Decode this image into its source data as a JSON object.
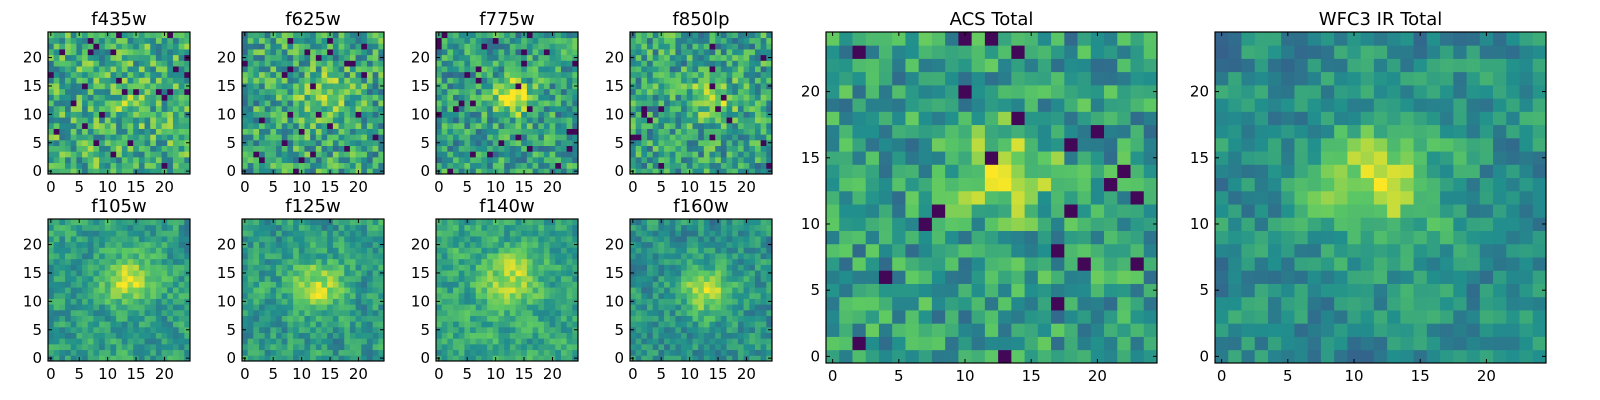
{
  "figure": {
    "colormap": "viridis",
    "colormap_stops": [
      "#440154",
      "#3b528b",
      "#21908d",
      "#5dc963",
      "#fde725"
    ]
  },
  "chart_data": [
    {
      "type": "heatmap",
      "title": "f435w",
      "size": 25,
      "xticks": [
        0,
        5,
        10,
        15,
        20
      ],
      "yticks": [
        0,
        5,
        10,
        15,
        20
      ],
      "xlim": [
        -0.5,
        24.5
      ],
      "ylim": [
        -0.5,
        24.5
      ],
      "seed": 11,
      "signal": 0.1,
      "center": [
        14,
        13
      ],
      "sigma": 3,
      "smooth": 0,
      "bias": 0.62,
      "noise": 0.26,
      "grid": false,
      "legend": "none"
    },
    {
      "type": "heatmap",
      "title": "f625w",
      "size": 25,
      "xticks": [
        0,
        5,
        10,
        15,
        20
      ],
      "yticks": [
        0,
        5,
        10,
        15,
        20
      ],
      "xlim": [
        -0.5,
        24.5
      ],
      "ylim": [
        -0.5,
        24.5
      ],
      "seed": 23,
      "signal": 0.22,
      "center": [
        14,
        13
      ],
      "sigma": 3,
      "smooth": 0,
      "bias": 0.58,
      "noise": 0.26,
      "grid": false,
      "legend": "none"
    },
    {
      "type": "heatmap",
      "title": "f775w",
      "size": 25,
      "xticks": [
        0,
        5,
        10,
        15,
        20
      ],
      "yticks": [
        0,
        5,
        10,
        15,
        20
      ],
      "xlim": [
        -0.5,
        24.5
      ],
      "ylim": [
        -0.5,
        24.5
      ],
      "seed": 37,
      "signal": 0.38,
      "center": [
        13,
        13
      ],
      "sigma": 2.5,
      "smooth": 0,
      "bias": 0.55,
      "noise": 0.24,
      "grid": false,
      "legend": "none"
    },
    {
      "type": "heatmap",
      "title": "f850lp",
      "size": 25,
      "xticks": [
        0,
        5,
        10,
        15,
        20
      ],
      "yticks": [
        0,
        5,
        10,
        15,
        20
      ],
      "xlim": [
        -0.5,
        24.5
      ],
      "ylim": [
        -0.5,
        24.5
      ],
      "seed": 41,
      "signal": 0.3,
      "center": [
        14,
        13
      ],
      "sigma": 2.5,
      "smooth": 0,
      "bias": 0.57,
      "noise": 0.25,
      "grid": false,
      "legend": "none"
    },
    {
      "type": "heatmap",
      "title": "f105w",
      "size": 25,
      "xticks": [
        0,
        5,
        10,
        15,
        20
      ],
      "yticks": [
        0,
        5,
        10,
        15,
        20
      ],
      "xlim": [
        -0.5,
        24.5
      ],
      "ylim": [
        -0.5,
        24.5
      ],
      "seed": 53,
      "signal": 0.38,
      "center": [
        14,
        14
      ],
      "sigma": 3,
      "smooth": 1,
      "bias": 0.56,
      "noise": 0.22,
      "grid": false,
      "legend": "none"
    },
    {
      "type": "heatmap",
      "title": "f125w",
      "size": 25,
      "xticks": [
        0,
        5,
        10,
        15,
        20
      ],
      "yticks": [
        0,
        5,
        10,
        15,
        20
      ],
      "xlim": [
        -0.5,
        24.5
      ],
      "ylim": [
        -0.5,
        24.5
      ],
      "seed": 67,
      "signal": 0.35,
      "center": [
        13,
        13
      ],
      "sigma": 3,
      "smooth": 1,
      "bias": 0.55,
      "noise": 0.23,
      "grid": false,
      "legend": "none"
    },
    {
      "type": "heatmap",
      "title": "f140w",
      "size": 25,
      "xticks": [
        0,
        5,
        10,
        15,
        20
      ],
      "yticks": [
        0,
        5,
        10,
        15,
        20
      ],
      "xlim": [
        -0.5,
        24.5
      ],
      "ylim": [
        -0.5,
        24.5
      ],
      "seed": 71,
      "signal": 0.3,
      "center": [
        13,
        14
      ],
      "sigma": 3,
      "smooth": 1,
      "bias": 0.6,
      "noise": 0.22,
      "grid": false,
      "legend": "none"
    },
    {
      "type": "heatmap",
      "title": "f160w",
      "size": 25,
      "xticks": [
        0,
        5,
        10,
        15,
        20
      ],
      "yticks": [
        0,
        5,
        10,
        15,
        20
      ],
      "xlim": [
        -0.5,
        24.5
      ],
      "ylim": [
        -0.5,
        24.5
      ],
      "seed": 89,
      "signal": 0.4,
      "center": [
        13,
        12
      ],
      "sigma": 3,
      "smooth": 1,
      "bias": 0.52,
      "noise": 0.22,
      "grid": false,
      "legend": "none"
    },
    {
      "type": "heatmap",
      "title": "ACS Total",
      "size": 25,
      "xticks": [
        0,
        5,
        10,
        15,
        20
      ],
      "yticks": [
        0,
        5,
        10,
        15,
        20
      ],
      "xlim": [
        -0.5,
        24.5
      ],
      "ylim": [
        -0.5,
        24.5
      ],
      "seed": 97,
      "signal": 0.38,
      "center": [
        13,
        14
      ],
      "sigma": 2.5,
      "smooth": 0,
      "bias": 0.55,
      "noise": 0.22,
      "grid": false,
      "legend": "none"
    },
    {
      "type": "heatmap",
      "title": "WFC3 IR Total",
      "size": 25,
      "xticks": [
        0,
        5,
        10,
        15,
        20
      ],
      "yticks": [
        0,
        5,
        10,
        15,
        20
      ],
      "xlim": [
        -0.5,
        24.5
      ],
      "ylim": [
        -0.5,
        24.5
      ],
      "seed": 103,
      "signal": 0.45,
      "center": [
        12,
        13
      ],
      "sigma": 3,
      "smooth": 1,
      "bias": 0.5,
      "noise": 0.22,
      "grid": false,
      "legend": "none"
    }
  ]
}
